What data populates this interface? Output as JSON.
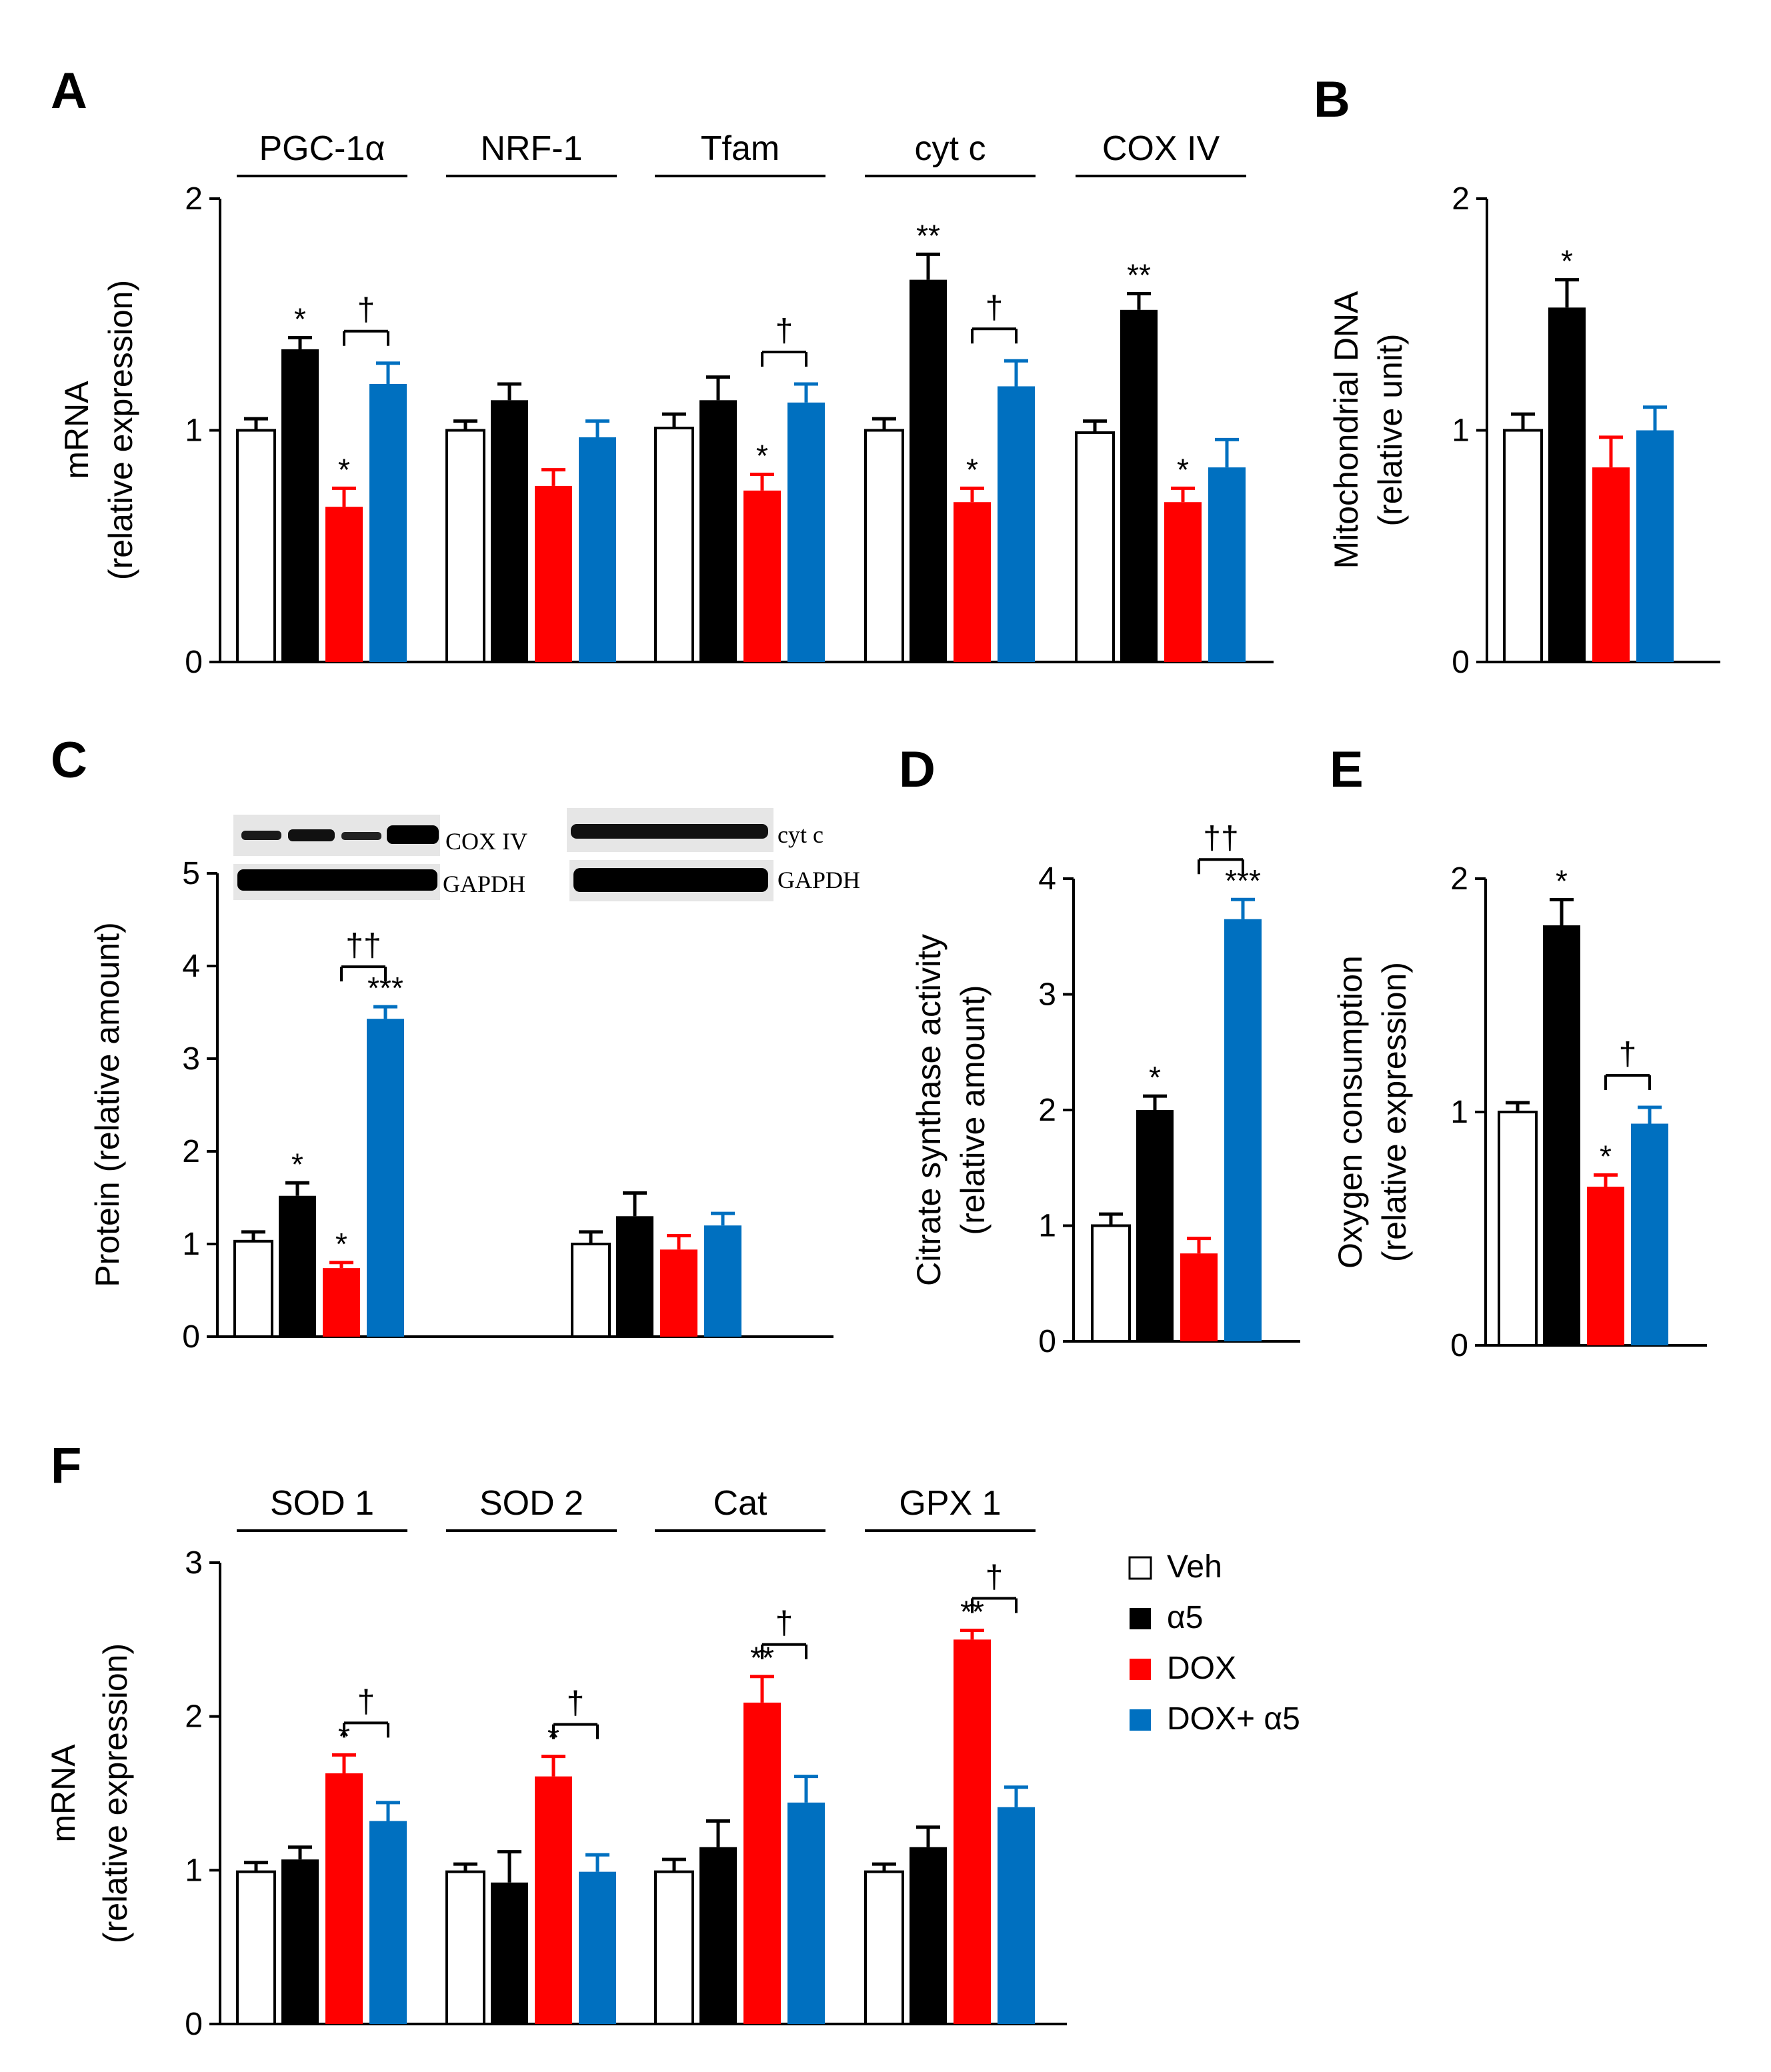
{
  "colors": {
    "Veh": "#ffffff",
    "a5": "#000000",
    "DOX": "#ff0000",
    "DOXa5": "#0070c0",
    "stroke": "#000000"
  },
  "legend": {
    "items": [
      {
        "label": "Veh",
        "color": "#ffffff"
      },
      {
        "label": "α5",
        "color": "#000000"
      },
      {
        "label": "DOX",
        "color": "#ff0000"
      },
      {
        "label": "DOX+ α5",
        "color": "#0070c0"
      }
    ]
  },
  "blots": {
    "left": {
      "protein_label": "COX IV",
      "loading_label": "GAPDH"
    },
    "right": {
      "protein_label": "cyt c",
      "loading_label": "GAPDH"
    }
  },
  "chart_data": [
    {
      "panel": "A",
      "type": "bar",
      "ylabel": "mRNA",
      "ylabel2": "(relative expression)",
      "ylim": [
        0,
        2
      ],
      "yticks": [
        "0",
        "1",
        "2"
      ],
      "series_names": [
        "Veh",
        "α5",
        "DOX",
        "DOX+ α5"
      ],
      "groups": [
        {
          "label": "PGC-1α",
          "values": [
            1.0,
            1.35,
            0.67,
            1.2
          ],
          "errors": [
            0.05,
            0.05,
            0.08,
            0.09
          ],
          "marks": [
            "",
            "*",
            "*",
            ""
          ],
          "bracket": {
            "mark": "†"
          }
        },
        {
          "label": "NRF-1",
          "values": [
            1.0,
            1.13,
            0.76,
            0.97
          ],
          "errors": [
            0.04,
            0.07,
            0.07,
            0.07
          ],
          "marks": [
            "",
            "",
            "",
            ""
          ]
        },
        {
          "label": "Tfam",
          "values": [
            1.01,
            1.13,
            0.74,
            1.12
          ],
          "errors": [
            0.06,
            0.1,
            0.07,
            0.08
          ],
          "marks": [
            "",
            "",
            "*",
            ""
          ],
          "bracket": {
            "mark": "†"
          }
        },
        {
          "label": "cyt c",
          "values": [
            1.0,
            1.65,
            0.69,
            1.19
          ],
          "errors": [
            0.05,
            0.11,
            0.06,
            0.11
          ],
          "marks": [
            "",
            "**",
            "*",
            ""
          ],
          "bracket": {
            "mark": "†"
          }
        },
        {
          "label": "COX IV",
          "values": [
            0.99,
            1.52,
            0.69,
            0.84
          ],
          "errors": [
            0.05,
            0.07,
            0.06,
            0.12
          ],
          "marks": [
            "",
            "**",
            "*",
            ""
          ]
        }
      ]
    },
    {
      "panel": "B",
      "type": "bar",
      "ylabel": "Mitochondrial DNA",
      "ylabel2": "(relative unit)",
      "ylim": [
        0,
        2
      ],
      "yticks": [
        "0",
        "1",
        "2"
      ],
      "series_names": [
        "Veh",
        "α5",
        "DOX",
        "DOX+ α5"
      ],
      "groups": [
        {
          "label": "",
          "values": [
            1.0,
            1.53,
            0.84,
            1.0
          ],
          "errors": [
            0.07,
            0.12,
            0.13,
            0.1
          ],
          "marks": [
            "",
            "*",
            "",
            ""
          ]
        }
      ]
    },
    {
      "panel": "C",
      "type": "bar",
      "ylabel": "Protein (relative amount)",
      "ylim": [
        0,
        5
      ],
      "yticks": [
        "0",
        "1",
        "2",
        "3",
        "4",
        "5"
      ],
      "series_names": [
        "Veh",
        "α5",
        "DOX",
        "DOX+ α5"
      ],
      "groups": [
        {
          "label": "COX IV",
          "values": [
            1.03,
            1.52,
            0.74,
            3.43
          ],
          "errors": [
            0.1,
            0.14,
            0.06,
            0.13
          ],
          "marks": [
            "",
            "*",
            "*",
            "***"
          ],
          "bracket": {
            "mark": "††"
          }
        },
        {
          "label": "cyt c",
          "values": [
            1.0,
            1.3,
            0.94,
            1.2
          ],
          "errors": [
            0.13,
            0.25,
            0.15,
            0.13
          ],
          "marks": [
            "",
            "",
            "",
            ""
          ]
        }
      ]
    },
    {
      "panel": "D",
      "type": "bar",
      "ylabel": "Citrate synthase activity",
      "ylabel2": "(relative amount)",
      "ylim": [
        0,
        4
      ],
      "yticks": [
        "0",
        "1",
        "2",
        "3",
        "4"
      ],
      "series_names": [
        "Veh",
        "α5",
        "DOX",
        "DOX+ α5"
      ],
      "groups": [
        {
          "label": "",
          "values": [
            1.0,
            2.0,
            0.76,
            3.65
          ],
          "errors": [
            0.1,
            0.12,
            0.13,
            0.17
          ],
          "marks": [
            "",
            "*",
            "",
            "***"
          ],
          "bracket": {
            "mark": "††"
          }
        }
      ]
    },
    {
      "panel": "E",
      "type": "bar",
      "ylabel": "Oxygen consumption",
      "ylabel2": "(relative expression)",
      "ylim": [
        0,
        2
      ],
      "yticks": [
        "0",
        "1",
        "2"
      ],
      "series_names": [
        "Veh",
        "α5",
        "DOX",
        "DOX+ α5"
      ],
      "groups": [
        {
          "label": "",
          "values": [
            1.0,
            1.8,
            0.68,
            0.95
          ],
          "errors": [
            0.04,
            0.11,
            0.05,
            0.07
          ],
          "marks": [
            "",
            "*",
            "*",
            ""
          ],
          "bracket": {
            "mark": "†"
          }
        }
      ]
    },
    {
      "panel": "F",
      "type": "bar",
      "ylabel": "mRNA",
      "ylabel2": "(relative expression)",
      "ylim": [
        0,
        3
      ],
      "yticks": [
        "0",
        "1",
        "2",
        "3"
      ],
      "series_names": [
        "Veh",
        "α5",
        "DOX",
        "DOX+ α5"
      ],
      "groups": [
        {
          "label": "SOD 1",
          "values": [
            0.99,
            1.07,
            1.63,
            1.32
          ],
          "errors": [
            0.06,
            0.08,
            0.12,
            0.12
          ],
          "marks": [
            "",
            "",
            "*",
            ""
          ],
          "bracket": {
            "mark": "†"
          }
        },
        {
          "label": "SOD 2",
          "values": [
            0.99,
            0.92,
            1.61,
            0.99
          ],
          "errors": [
            0.05,
            0.2,
            0.13,
            0.11
          ],
          "marks": [
            "",
            "",
            "*",
            ""
          ],
          "bracket": {
            "mark": "†"
          }
        },
        {
          "label": "Cat",
          "values": [
            0.99,
            1.15,
            2.09,
            1.44
          ],
          "errors": [
            0.08,
            0.17,
            0.17,
            0.17
          ],
          "marks": [
            "",
            "",
            "**",
            ""
          ],
          "bracket": {
            "mark": "†"
          }
        },
        {
          "label": "GPX 1",
          "values": [
            0.99,
            1.15,
            2.5,
            1.41
          ],
          "errors": [
            0.05,
            0.13,
            0.06,
            0.13
          ],
          "marks": [
            "",
            "",
            "**",
            ""
          ],
          "bracket": {
            "mark": "†"
          }
        }
      ]
    }
  ]
}
